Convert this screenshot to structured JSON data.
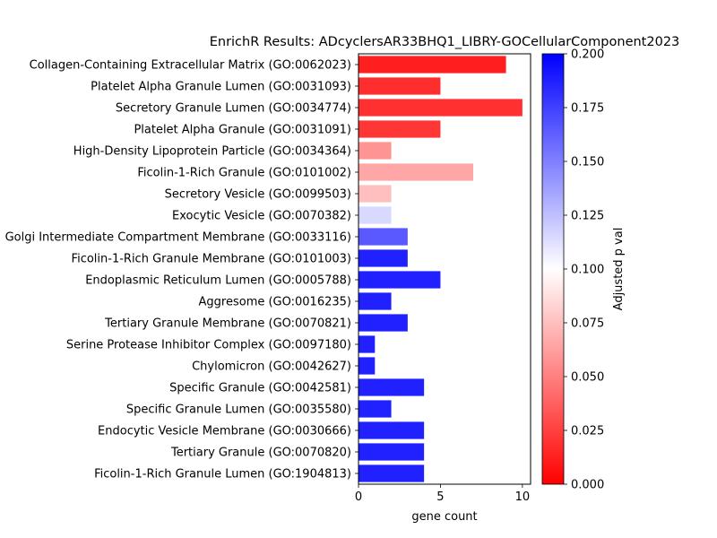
{
  "chart_data": {
    "type": "bar",
    "orientation": "horizontal",
    "title": "EnrichR Results: ADcyclersAR33BHQ1_LIBRY-GOCellularComponent2023",
    "xlabel": "gene count",
    "ylabel": "",
    "xlim": [
      0,
      10.5
    ],
    "x_ticks": [
      "0",
      "5",
      "10"
    ],
    "grid": false,
    "colorbar": {
      "label": "Adjusted p val",
      "range": [
        0,
        0.2
      ],
      "colormap": "bwr_r",
      "low_color": "#ff0000",
      "mid_color": "#ffffff",
      "high_color": "#0000ff",
      "tick_labels": [
        "0.000",
        "0.025",
        "0.050",
        "0.075",
        "0.100",
        "0.125",
        "0.150",
        "0.175",
        "0.200"
      ]
    },
    "categories": [
      "Collagen-Containing Extracellular Matrix (GO:0062023)",
      "Platelet Alpha Granule Lumen (GO:0031093)",
      "Secretory Granule Lumen (GO:0034774)",
      "Platelet Alpha Granule (GO:0031091)",
      "High-Density Lipoprotein Particle (GO:0034364)",
      "Ficolin-1-Rich Granule (GO:0101002)",
      "Secretory Vesicle (GO:0099503)",
      "Exocytic Vesicle (GO:0070382)",
      "Golgi Intermediate Compartment Membrane (GO:0033116)",
      "Ficolin-1-Rich Granule Membrane (GO:0101003)",
      "Endoplasmic Reticulum Lumen (GO:0005788)",
      "Aggresome (GO:0016235)",
      "Tertiary Granule Membrane (GO:0070821)",
      "Serine Protease Inhibitor Complex (GO:0097180)",
      "Chylomicron (GO:0042627)",
      "Specific Granule (GO:0042581)",
      "Specific Granule Lumen (GO:0035580)",
      "Endocytic Vesicle Membrane (GO:0030666)",
      "Tertiary Granule (GO:0070820)",
      "Ficolin-1-Rich Granule Lumen (GO:1904813)"
    ],
    "values": [
      9,
      5,
      10,
      5,
      2,
      7,
      2,
      2,
      3,
      3,
      5,
      2,
      3,
      1,
      1,
      4,
      2,
      4,
      4,
      4
    ],
    "adjusted_p": [
      0.012,
      0.018,
      0.019,
      0.021,
      0.058,
      0.065,
      0.075,
      0.115,
      0.165,
      0.187,
      0.187,
      0.187,
      0.187,
      0.187,
      0.187,
      0.187,
      0.187,
      0.187,
      0.187,
      0.187
    ]
  }
}
